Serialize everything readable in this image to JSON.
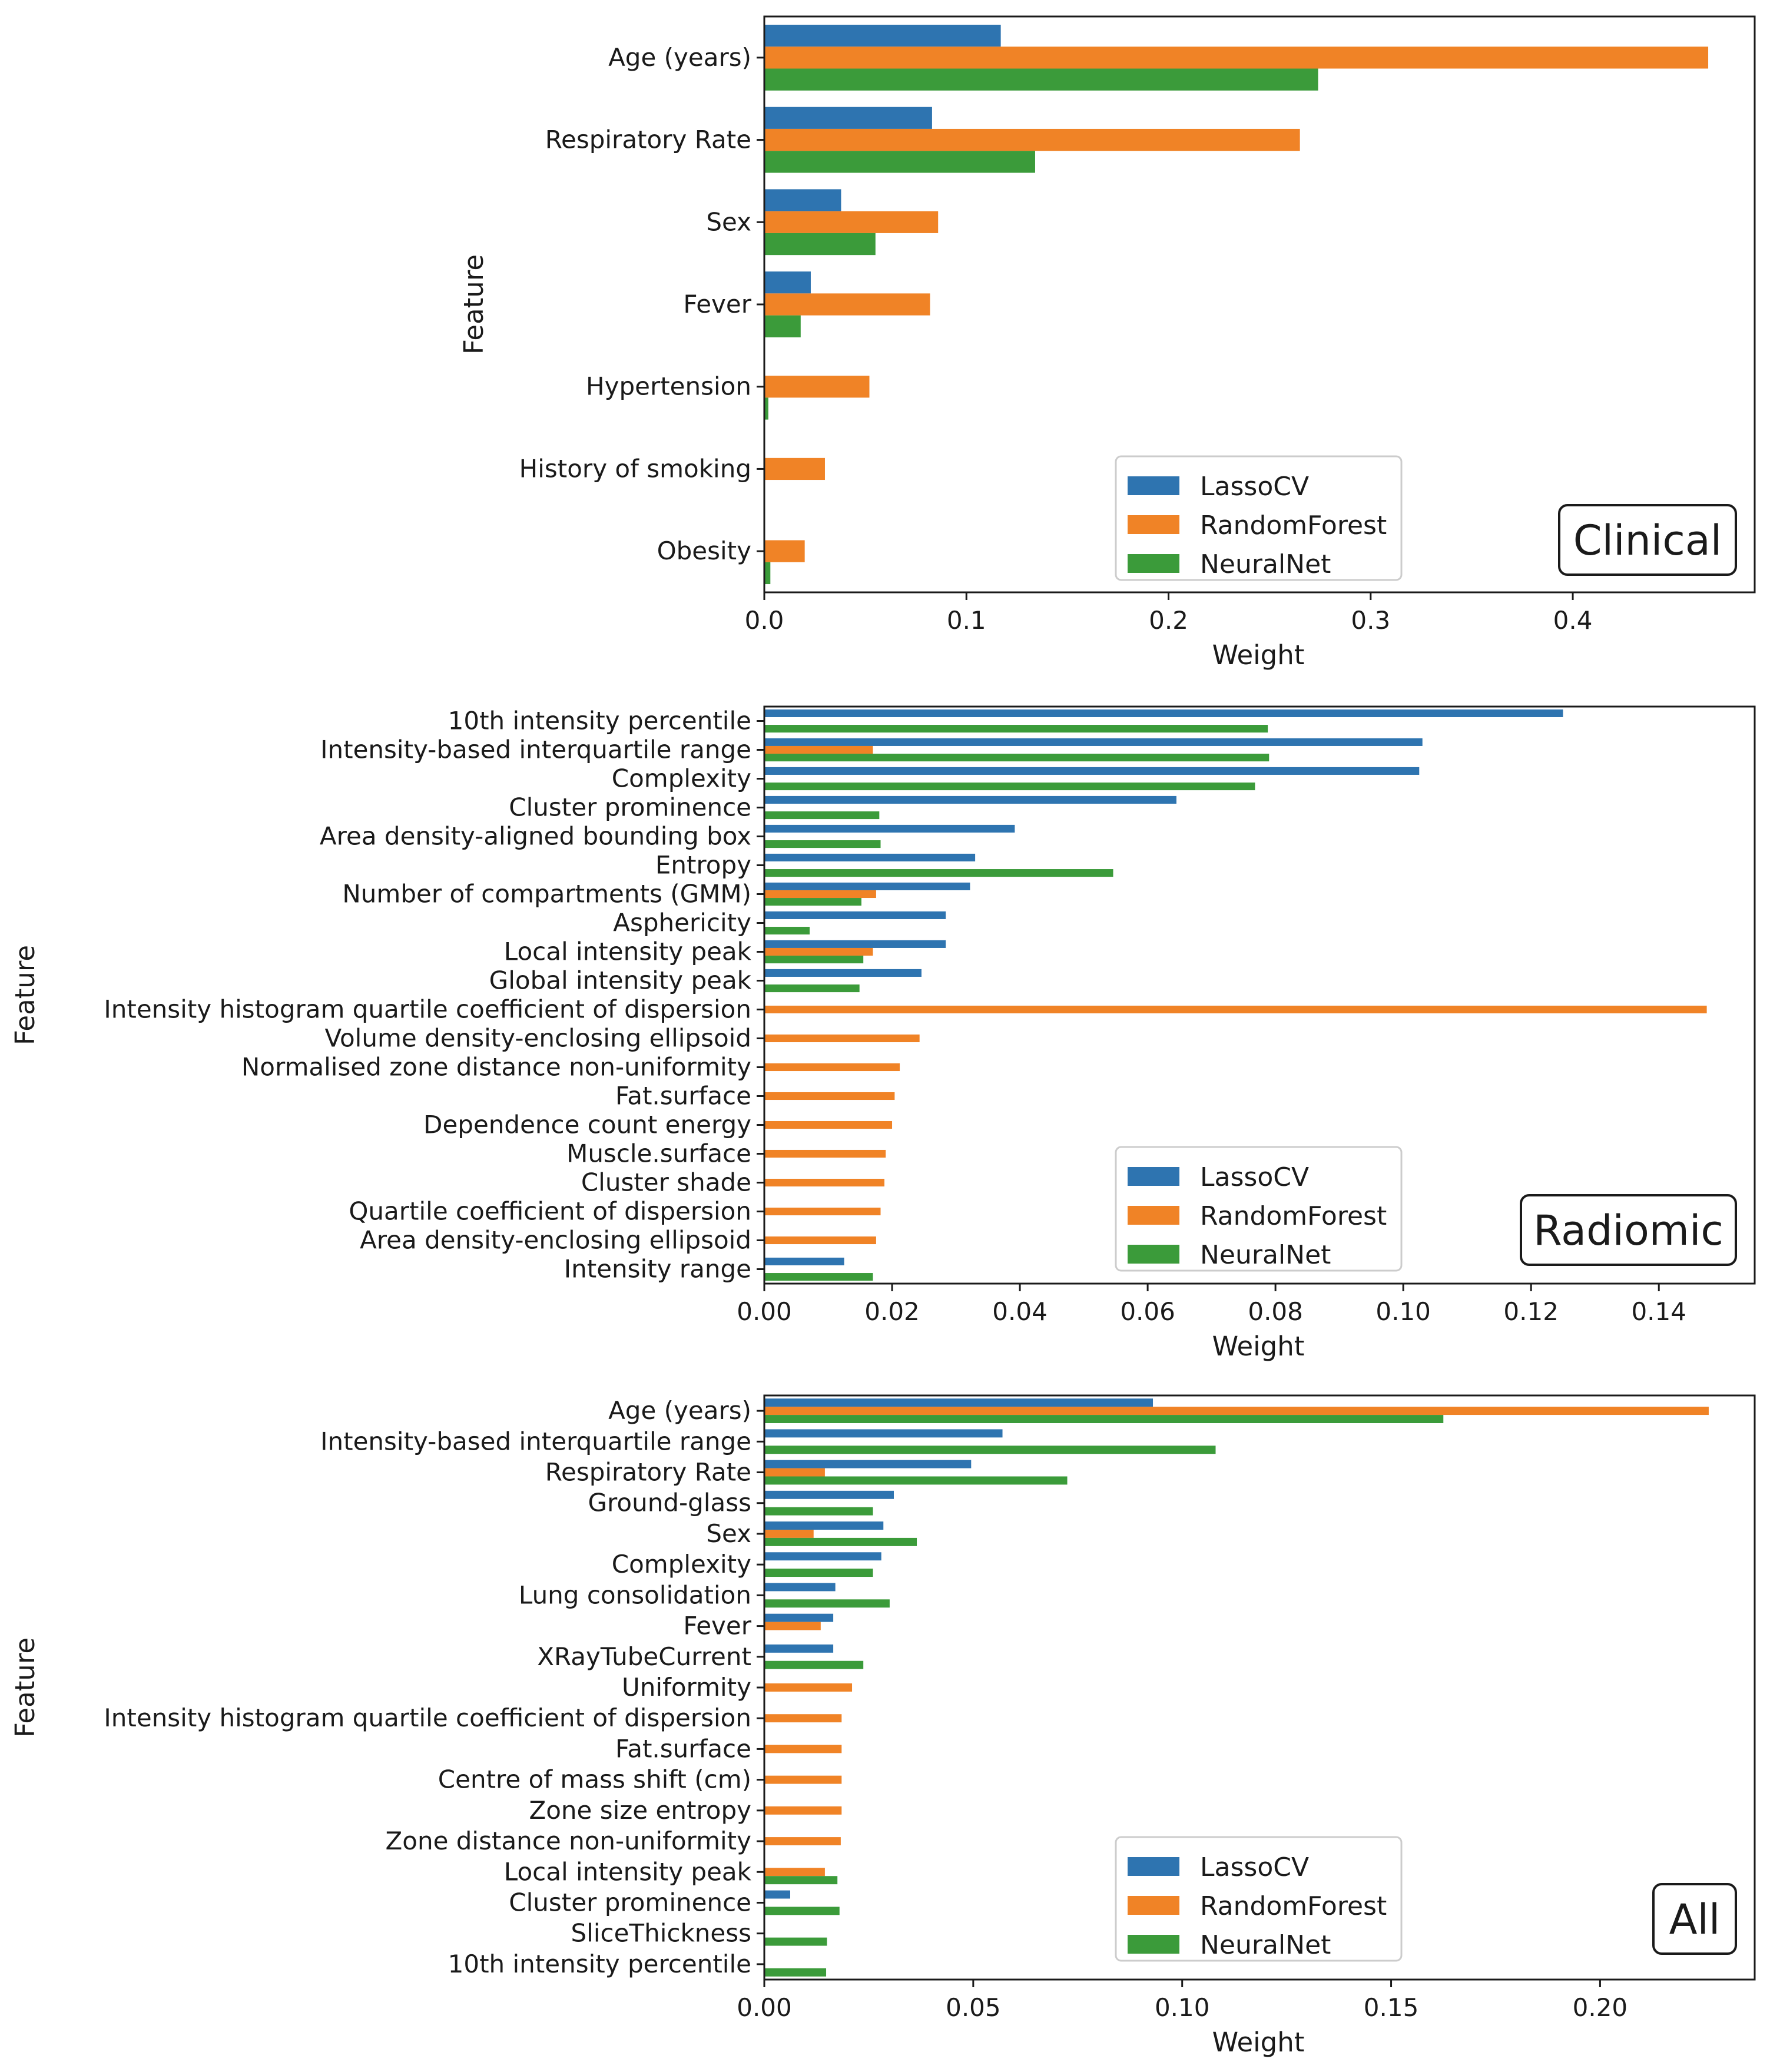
{
  "colors": {
    "LassoCV": "#2e74b0",
    "RandomForest": "#f08326",
    "NeuralNet": "#3b9b3a"
  },
  "chart_data": [
    {
      "type": "bar",
      "orientation": "horizontal",
      "panel_label": "Clinical",
      "xlabel": "Weight",
      "ylabel": "Feature",
      "xlim": [
        0,
        0.49
      ],
      "xticks": [
        0.0,
        0.1,
        0.2,
        0.3,
        0.4
      ],
      "xtick_labels": [
        "0.0",
        "0.1",
        "0.2",
        "0.3",
        "0.4"
      ],
      "legend": [
        "LassoCV",
        "RandomForest",
        "NeuralNet"
      ],
      "legend_position": "lower-center-right",
      "categories": [
        "Age (years)",
        "Respiratory Rate",
        "Sex",
        "Fever",
        "Hypertension",
        "History of smoking",
        "Obesity"
      ],
      "series": [
        {
          "name": "LassoCV",
          "values": [
            0.117,
            0.083,
            0.038,
            0.023,
            0.0,
            0.0,
            0.0
          ]
        },
        {
          "name": "RandomForest",
          "values": [
            0.467,
            0.265,
            0.086,
            0.082,
            0.052,
            0.03,
            0.02
          ]
        },
        {
          "name": "NeuralNet",
          "values": [
            0.274,
            0.134,
            0.055,
            0.018,
            0.002,
            0.0,
            0.003
          ]
        }
      ]
    },
    {
      "type": "bar",
      "orientation": "horizontal",
      "panel_label": "Radiomic",
      "xlabel": "Weight",
      "ylabel": "Feature",
      "xlim": [
        0,
        0.155
      ],
      "xticks": [
        0.0,
        0.02,
        0.04,
        0.06,
        0.08,
        0.1,
        0.12,
        0.14
      ],
      "xtick_labels": [
        "0.00",
        "0.02",
        "0.04",
        "0.06",
        "0.08",
        "0.10",
        "0.12",
        "0.14"
      ],
      "legend": [
        "LassoCV",
        "RandomForest",
        "NeuralNet"
      ],
      "legend_position": "lower-center-right",
      "categories": [
        "10th intensity percentile",
        "Intensity-based interquartile range",
        "Complexity",
        "Cluster prominence",
        "Area density-aligned bounding box",
        "Entropy",
        "Number of compartments (GMM)",
        "Asphericity",
        "Local intensity peak",
        "Global intensity peak",
        "Intensity histogram quartile coefficient of dispersion",
        "Volume density-enclosing ellipsoid",
        "Normalised zone distance non-uniformity",
        "Fat.surface",
        "Dependence count energy",
        "Muscle.surface",
        "Cluster shade",
        "Quartile coefficient of dispersion",
        "Area density-enclosing ellipsoid",
        "Intensity range"
      ],
      "series": [
        {
          "name": "LassoCV",
          "values": [
            0.125,
            0.103,
            0.1025,
            0.0645,
            0.0392,
            0.033,
            0.0322,
            0.0284,
            0.0284,
            0.0246,
            0,
            0,
            0,
            0,
            0,
            0,
            0,
            0,
            0,
            0.0125
          ]
        },
        {
          "name": "RandomForest",
          "values": [
            0,
            0.017,
            0,
            0,
            0,
            0,
            0.0175,
            0,
            0.017,
            0,
            0.1475,
            0.0243,
            0.0212,
            0.0204,
            0.02,
            0.019,
            0.0188,
            0.0182,
            0.0175,
            0
          ]
        },
        {
          "name": "NeuralNet",
          "values": [
            0.0788,
            0.079,
            0.0768,
            0.018,
            0.0182,
            0.0546,
            0.0152,
            0.0071,
            0.0155,
            0.0149,
            0,
            0,
            0,
            0,
            0,
            0,
            0,
            0,
            0,
            0.017
          ]
        }
      ]
    },
    {
      "type": "bar",
      "orientation": "horizontal",
      "panel_label": "All",
      "xlabel": "Weight",
      "ylabel": "Feature",
      "xlim": [
        0,
        0.237
      ],
      "xticks": [
        0.0,
        0.05,
        0.1,
        0.15,
        0.2
      ],
      "xtick_labels": [
        "0.00",
        "0.05",
        "0.10",
        "0.15",
        "0.20"
      ],
      "legend": [
        "LassoCV",
        "RandomForest",
        "NeuralNet"
      ],
      "legend_position": "lower-center-right",
      "categories": [
        "Age (years)",
        "Intensity-based interquartile range",
        "Respiratory Rate",
        "Ground-glass",
        "Sex",
        "Complexity",
        "Lung consolidation",
        "Fever",
        "XRayTubeCurrent",
        "Uniformity",
        "Intensity histogram quartile coefficient of dispersion",
        "Fat.surface",
        "Centre of mass shift (cm)",
        "Zone size entropy",
        "Zone distance non-uniformity",
        "Local intensity peak",
        "Cluster prominence",
        "SliceThickness",
        "10th intensity percentile"
      ],
      "series": [
        {
          "name": "LassoCV",
          "values": [
            0.093,
            0.057,
            0.0495,
            0.031,
            0.0285,
            0.028,
            0.017,
            0.0165,
            0.0165,
            0,
            0,
            0,
            0,
            0,
            0,
            0,
            0.0062,
            0,
            0
          ]
        },
        {
          "name": "RandomForest",
          "values": [
            0.226,
            0,
            0.0145,
            0,
            0.0118,
            0,
            0,
            0.0135,
            0,
            0.021,
            0.0185,
            0.0185,
            0.0185,
            0.0185,
            0.0183,
            0.0145,
            0,
            0,
            0
          ]
        },
        {
          "name": "NeuralNet",
          "values": [
            0.1625,
            0.108,
            0.0725,
            0.026,
            0.0365,
            0.026,
            0.03,
            0,
            0.0237,
            0,
            0,
            0,
            0,
            0,
            0,
            0.0175,
            0.018,
            0.015,
            0.0148
          ]
        }
      ]
    }
  ]
}
